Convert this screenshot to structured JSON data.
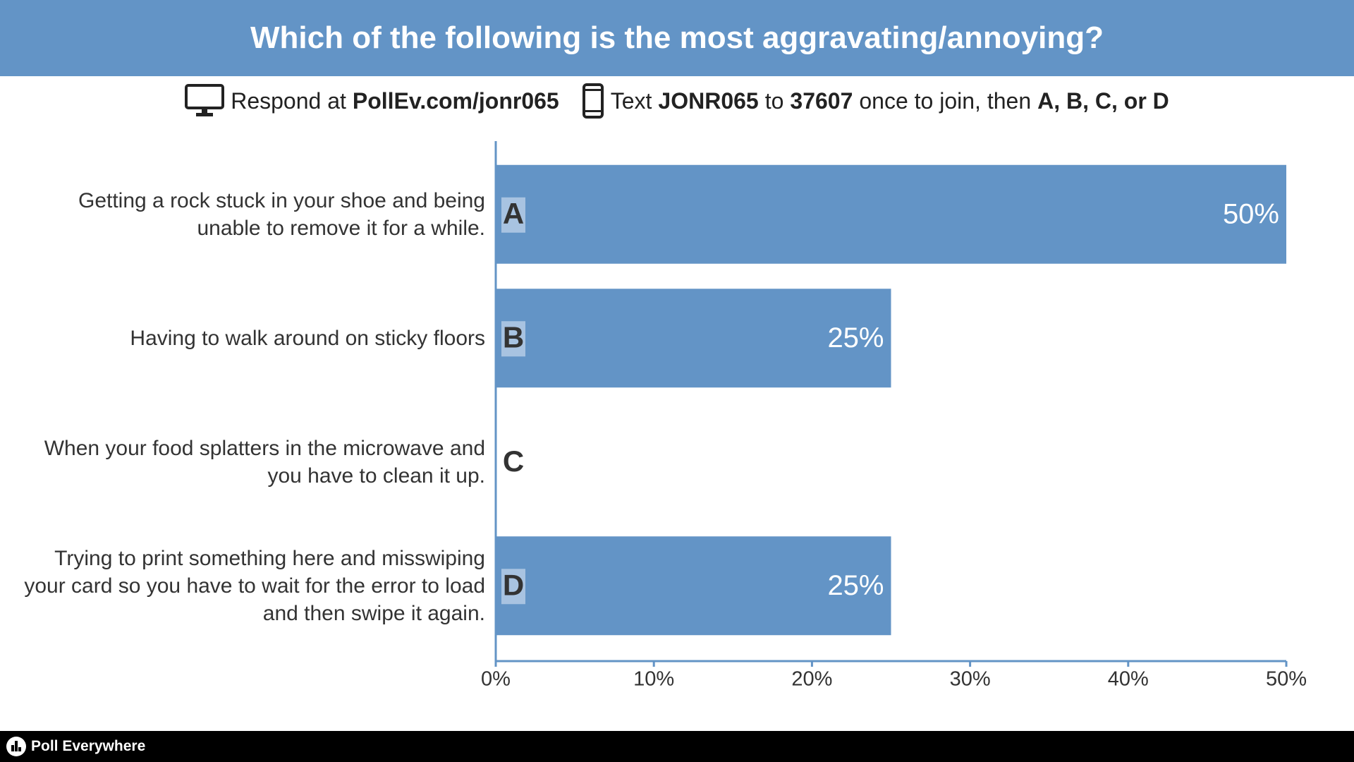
{
  "header": {
    "title": "Which of the following is the most aggravating/annoying?"
  },
  "join_instructions": [
    [
      {
        "text": "Respond at",
        "bold": false
      },
      {
        "text": "PollEv.com/jonr065",
        "bold": true
      }
    ],
    [
      {
        "text": "Text",
        "bold": false
      },
      {
        "text": "JONR065",
        "bold": true
      },
      {
        "text": "to",
        "bold": false
      },
      {
        "text": "37607",
        "bold": true
      },
      {
        "text": "once to join, then",
        "bold": false
      },
      {
        "text": "A, B, C, or D",
        "bold": true
      }
    ]
  ],
  "chart_data": {
    "type": "bar",
    "orientation": "horizontal",
    "categories": [
      "Getting a rock stuck in your shoe and being unable to remove it for a while.",
      "Having to walk around on sticky floors",
      "When your food splatters in the microwave and you have to clean it up.",
      "Trying to print something here and misswiping your card so you have to wait for the error to load and then swipe it again."
    ],
    "letters": [
      "A",
      "B",
      "C",
      "D"
    ],
    "values": [
      50,
      25,
      0,
      25
    ],
    "value_labels": [
      "50%",
      "25%",
      null,
      "25%"
    ],
    "color": "#6394c6",
    "xlim": [
      0,
      50
    ],
    "xticks": [
      {
        "value": 0,
        "label": "0%"
      },
      {
        "value": 10,
        "label": "10%"
      },
      {
        "value": 20,
        "label": "20%"
      },
      {
        "value": 30,
        "label": "30%"
      },
      {
        "value": 40,
        "label": "40%"
      },
      {
        "value": 50,
        "label": "50%"
      }
    ],
    "grid": false
  },
  "footer": {
    "brand": "Poll Everywhere"
  }
}
